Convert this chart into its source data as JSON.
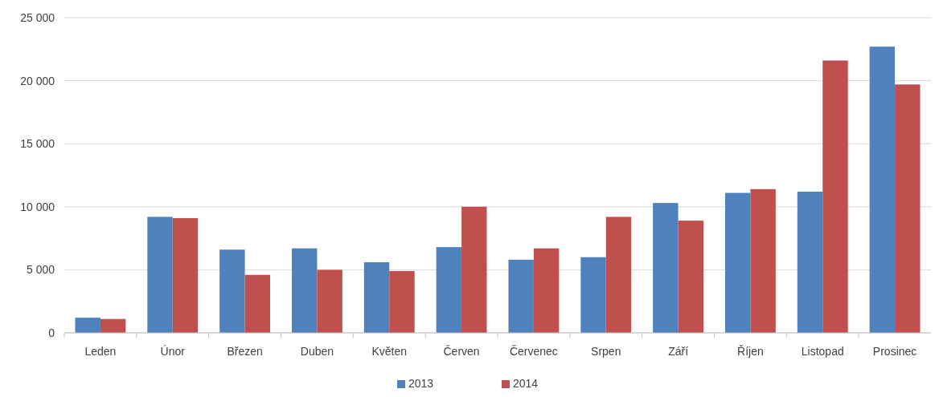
{
  "chart_data": {
    "type": "bar",
    "categories": [
      "Leden",
      "Únor",
      "Březen",
      "Duben",
      "Květen",
      "Červen",
      "Červenec",
      "Srpen",
      "Září",
      "Říjen",
      "Listopad",
      "Prosinec"
    ],
    "series": [
      {
        "name": "2013",
        "color": "#4f81bd",
        "values": [
          1200,
          9200,
          6600,
          6700,
          5600,
          6800,
          5800,
          6000,
          10300,
          11100,
          11200,
          22700
        ]
      },
      {
        "name": "2014",
        "color": "#c0504d",
        "values": [
          1100,
          9100,
          4600,
          5000,
          4900,
          10000,
          6700,
          9200,
          8900,
          11400,
          21600,
          19700
        ]
      }
    ],
    "ylim": [
      0,
      25000
    ],
    "yticks": [
      0,
      {
        "value": 5000,
        "label": "5 000"
      },
      {
        "value": 10000,
        "label": "10 000"
      },
      {
        "value": 15000,
        "label": "15 000"
      },
      {
        "value": 20000,
        "label": "20 000"
      },
      {
        "value": 25000,
        "label": "25 000"
      }
    ],
    "grid": "y",
    "legend": "bottom"
  }
}
